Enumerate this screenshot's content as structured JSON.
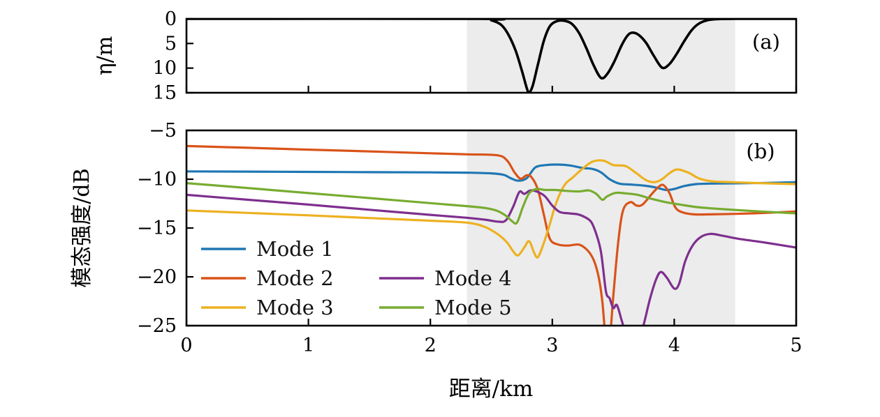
{
  "figure": {
    "background": "#ffffff",
    "shaded_band_color": "#ececec",
    "spine_color": "#000000"
  },
  "chart_data": [
    {
      "type": "line",
      "panel_label": "(a)",
      "ylabel": "η/m",
      "xlabel": "",
      "xlim": [
        0,
        5
      ],
      "ylim": [
        0,
        15
      ],
      "y_inverted": true,
      "grid": false,
      "shaded_region_x": [
        2.3,
        4.5
      ],
      "yticks": {
        "values": [
          0,
          5,
          10,
          15
        ],
        "labels": [
          "0",
          "5",
          "10",
          "15"
        ]
      },
      "xticks": {
        "values": [
          0,
          1,
          2,
          3,
          4,
          5
        ],
        "labels": []
      },
      "series": [
        {
          "name": "seabed-profile",
          "color": "#000000",
          "width": 3.6,
          "x": [
            0,
            2.4,
            2.5,
            2.58,
            2.64,
            2.7,
            2.75,
            2.79,
            2.81,
            2.84,
            2.88,
            2.93,
            2.98,
            3.04,
            3.1,
            3.16,
            3.22,
            3.28,
            3.34,
            3.4,
            3.45,
            3.51,
            3.57,
            3.62,
            3.66,
            3.71,
            3.77,
            3.83,
            3.9,
            3.96,
            4.02,
            4.08,
            4.14,
            4.2,
            4.27,
            4.35,
            4.5,
            5.0
          ],
          "y": [
            0,
            0,
            0.3,
            1.2,
            3.2,
            6.5,
            10.5,
            14.0,
            15.0,
            13.5,
            9.5,
            4.5,
            1.5,
            0.45,
            0.4,
            1.0,
            2.9,
            6.0,
            9.5,
            12.0,
            11.2,
            8.6,
            5.3,
            3.3,
            2.8,
            3.3,
            4.9,
            7.4,
            9.9,
            9.2,
            7.1,
            4.6,
            2.4,
            1.0,
            0.3,
            0.05,
            0,
            0
          ]
        }
      ]
    },
    {
      "type": "line",
      "panel_label": "(b)",
      "ylabel": "模态强度/dB",
      "xlabel": "距离/km",
      "xlim": [
        0,
        5
      ],
      "ylim": [
        -25,
        -5
      ],
      "grid": false,
      "shaded_region_x": [
        2.3,
        4.5
      ],
      "yticks": {
        "values": [
          -5,
          -10,
          -15,
          -20,
          -25
        ],
        "labels": [
          "−5",
          "−10",
          "−15",
          "−20",
          "−25"
        ]
      },
      "xticks": {
        "values": [
          0,
          1,
          2,
          3,
          4,
          5
        ],
        "labels": [
          "0",
          "1",
          "2",
          "3",
          "4",
          "5"
        ]
      },
      "legend": [
        {
          "label": "Mode 1",
          "color": "#1f77b4",
          "col": 0,
          "row": 0
        },
        {
          "label": "Mode 2",
          "color": "#d95319",
          "col": 0,
          "row": 1
        },
        {
          "label": "Mode 3",
          "color": "#edb120",
          "col": 0,
          "row": 2
        },
        {
          "label": "Mode 4",
          "color": "#7e2f8e",
          "col": 1,
          "row": 1
        },
        {
          "label": "Mode 5",
          "color": "#77ac30",
          "col": 1,
          "row": 2
        }
      ],
      "series": [
        {
          "name": "mode-1",
          "color": "#1f77b4",
          "width": 3.2,
          "x": [
            0,
            0.5,
            1,
            1.5,
            2,
            2.3,
            2.5,
            2.6,
            2.66,
            2.72,
            2.79,
            2.86,
            2.95,
            3.05,
            3.15,
            3.25,
            3.33,
            3.4,
            3.47,
            3.55,
            3.65,
            3.75,
            3.85,
            3.93,
            4.0,
            4.08,
            4.18,
            4.3,
            4.5,
            4.75,
            5
          ],
          "y": [
            -9.2,
            -9.22,
            -9.25,
            -9.28,
            -9.3,
            -9.33,
            -9.4,
            -9.55,
            -9.9,
            -10.15,
            -9.9,
            -8.8,
            -8.55,
            -8.5,
            -8.6,
            -8.85,
            -8.95,
            -9.3,
            -10.0,
            -10.45,
            -10.55,
            -10.65,
            -10.85,
            -11.1,
            -11.0,
            -10.7,
            -10.5,
            -10.45,
            -10.42,
            -10.38,
            -10.3
          ]
        },
        {
          "name": "mode-2",
          "color": "#d95319",
          "width": 3.2,
          "x": [
            0,
            0.5,
            1,
            1.5,
            2,
            2.3,
            2.55,
            2.63,
            2.69,
            2.74,
            2.79,
            2.83,
            2.88,
            2.93,
            2.98,
            3.05,
            3.13,
            3.22,
            3.29,
            3.34,
            3.38,
            3.41,
            3.44,
            3.47,
            3.5,
            3.54,
            3.58,
            3.64,
            3.69,
            3.74,
            3.81,
            3.87,
            3.91,
            3.96,
            4.01,
            4.07,
            4.16,
            4.3,
            4.5,
            4.75,
            5
          ],
          "y": [
            -6.6,
            -6.78,
            -6.97,
            -7.15,
            -7.34,
            -7.45,
            -7.55,
            -8.1,
            -9.3,
            -9.95,
            -9.6,
            -9.8,
            -11.0,
            -13.6,
            -16.1,
            -16.7,
            -16.8,
            -16.7,
            -17.3,
            -18.3,
            -20.0,
            -22.5,
            -26.5,
            -26.5,
            -22.0,
            -16.5,
            -13.2,
            -12.35,
            -12.7,
            -12.6,
            -11.6,
            -10.8,
            -10.6,
            -11.4,
            -12.9,
            -13.4,
            -13.6,
            -13.6,
            -13.55,
            -13.45,
            -13.3
          ]
        },
        {
          "name": "mode-3",
          "color": "#edb120",
          "width": 3.2,
          "x": [
            0,
            0.5,
            1,
            1.5,
            2,
            2.3,
            2.45,
            2.56,
            2.63,
            2.68,
            2.72,
            2.77,
            2.81,
            2.85,
            2.88,
            2.92,
            2.97,
            3.03,
            3.1,
            3.17,
            3.25,
            3.33,
            3.42,
            3.5,
            3.6,
            3.68,
            3.77,
            3.84,
            3.9,
            3.97,
            4.03,
            4.12,
            4.2,
            4.3,
            4.45,
            4.7,
            5
          ],
          "y": [
            -13.2,
            -13.45,
            -13.7,
            -13.98,
            -14.25,
            -14.45,
            -14.9,
            -15.7,
            -16.5,
            -17.4,
            -17.8,
            -17.0,
            -16.35,
            -17.5,
            -18.0,
            -16.9,
            -15.0,
            -12.5,
            -10.6,
            -9.8,
            -8.9,
            -8.2,
            -8.1,
            -8.55,
            -8.65,
            -9.3,
            -10.1,
            -10.3,
            -10.0,
            -9.3,
            -9.0,
            -9.35,
            -9.9,
            -10.2,
            -10.3,
            -10.4,
            -10.5
          ]
        },
        {
          "name": "mode-4",
          "color": "#7e2f8e",
          "width": 3.2,
          "x": [
            0,
            0.5,
            1,
            1.5,
            2,
            2.3,
            2.45,
            2.56,
            2.62,
            2.68,
            2.73,
            2.77,
            2.82,
            2.88,
            2.94,
            3.0,
            3.06,
            3.14,
            3.21,
            3.27,
            3.32,
            3.36,
            3.4,
            3.44,
            3.47,
            3.5,
            3.53,
            3.57,
            3.62,
            3.68,
            3.74,
            3.8,
            3.85,
            3.89,
            3.94,
            4.0,
            4.04,
            4.09,
            4.15,
            4.22,
            4.3,
            4.4,
            4.55,
            4.75,
            5
          ],
          "y": [
            -11.6,
            -12.1,
            -12.6,
            -13.13,
            -13.65,
            -13.95,
            -14.15,
            -14.35,
            -14.2,
            -12.8,
            -11.3,
            -11.5,
            -11.15,
            -11.3,
            -11.75,
            -12.7,
            -13.35,
            -13.5,
            -13.6,
            -13.9,
            -14.4,
            -15.6,
            -17.5,
            -21.5,
            -22.2,
            -23.2,
            -22.9,
            -24.5,
            -26.5,
            -27.0,
            -25.3,
            -22.3,
            -20.3,
            -19.5,
            -20.1,
            -21.2,
            -20.7,
            -18.4,
            -16.8,
            -15.9,
            -15.6,
            -15.8,
            -16.15,
            -16.5,
            -17.0
          ]
        },
        {
          "name": "mode-5",
          "color": "#77ac30",
          "width": 3.2,
          "x": [
            0,
            0.5,
            1,
            1.5,
            2,
            2.3,
            2.45,
            2.55,
            2.62,
            2.67,
            2.71,
            2.76,
            2.81,
            2.87,
            2.94,
            3.02,
            3.12,
            3.22,
            3.3,
            3.36,
            3.41,
            3.45,
            3.52,
            3.6,
            3.7,
            3.78,
            3.86,
            3.95,
            4.05,
            4.18,
            4.32,
            4.5,
            4.7,
            5
          ],
          "y": [
            -10.4,
            -10.9,
            -11.42,
            -11.93,
            -12.45,
            -12.76,
            -12.95,
            -13.25,
            -13.75,
            -14.3,
            -14.45,
            -12.8,
            -11.45,
            -11.0,
            -11.1,
            -11.1,
            -11.2,
            -11.25,
            -11.15,
            -11.5,
            -12.1,
            -11.75,
            -11.4,
            -11.45,
            -11.6,
            -11.9,
            -12.15,
            -12.4,
            -12.6,
            -12.85,
            -13.0,
            -13.15,
            -13.3,
            -13.5
          ]
        }
      ]
    }
  ]
}
